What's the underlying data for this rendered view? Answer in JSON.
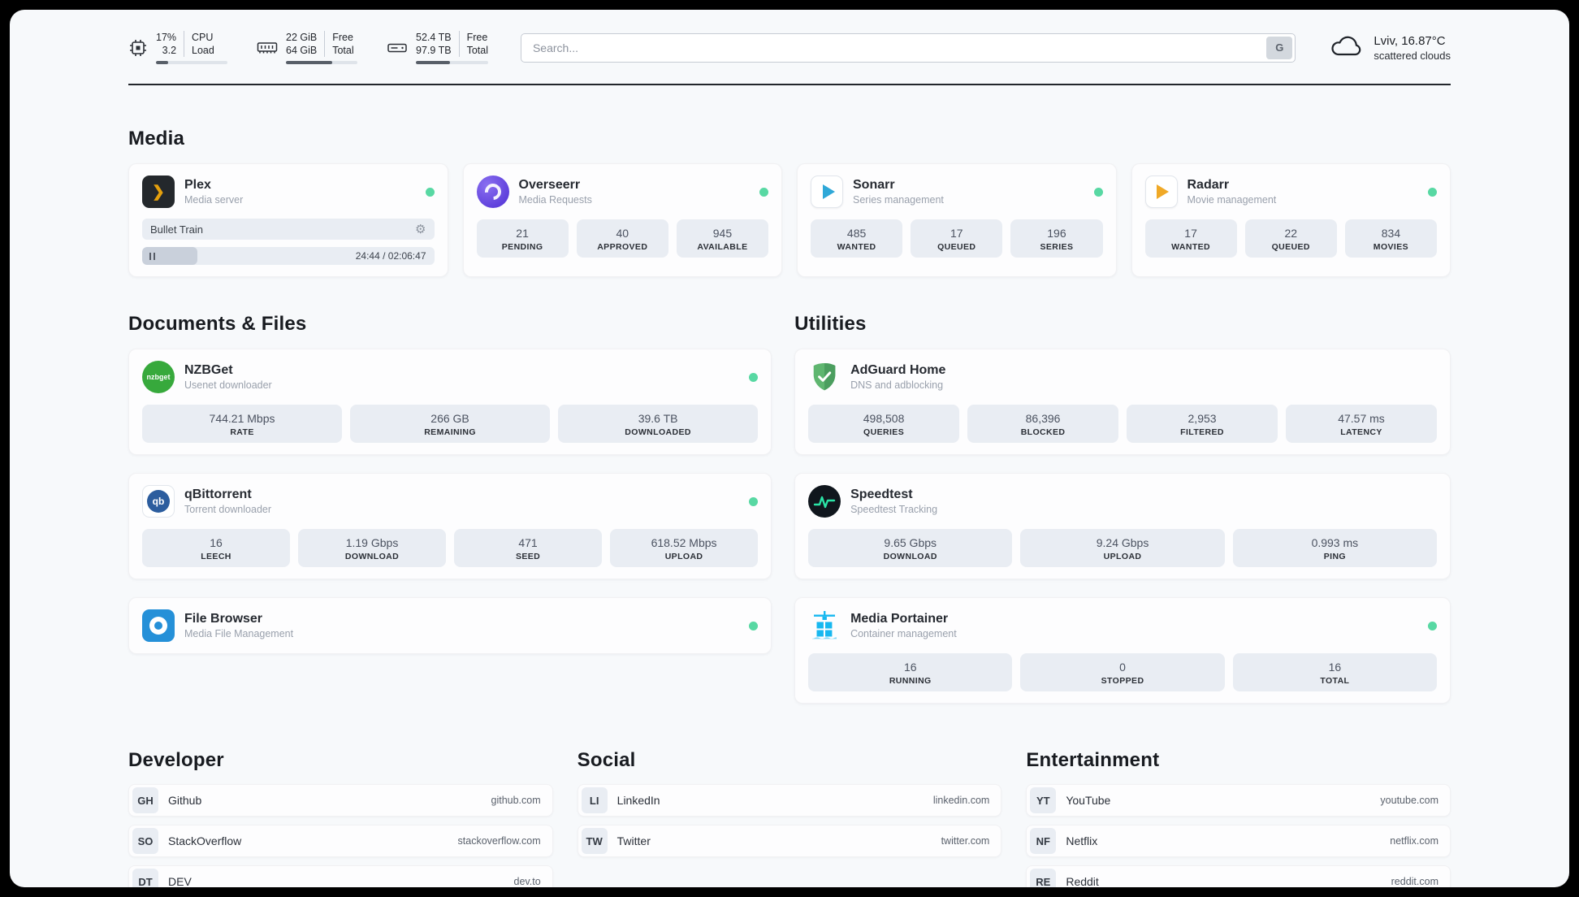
{
  "header": {
    "metrics": [
      {
        "icon": "cpu-icon",
        "rows": [
          {
            "value": "17%",
            "label": "CPU"
          },
          {
            "value": "3.2",
            "label": "Load"
          }
        ],
        "progress": 17
      },
      {
        "icon": "ram-icon",
        "rows": [
          {
            "value": "22 GiB",
            "label": "Free"
          },
          {
            "value": "64 GiB",
            "label": "Total"
          }
        ],
        "progress": 65
      },
      {
        "icon": "disk-icon",
        "rows": [
          {
            "value": "52.4 TB",
            "label": "Free"
          },
          {
            "value": "97.9 TB",
            "label": "Total"
          }
        ],
        "progress": 47
      }
    ],
    "search": {
      "placeholder": "Search...",
      "engine_button": "G"
    },
    "weather": {
      "location": "Lviv, 16.87°C",
      "condition": "scattered clouds"
    }
  },
  "sections": {
    "media": {
      "title": "Media",
      "apps": [
        {
          "name": "Plex",
          "subtitle": "Media server",
          "player": {
            "title": "Bullet Train",
            "time": "24:44 / 02:06:47",
            "progress": 19
          }
        },
        {
          "name": "Overseerr",
          "subtitle": "Media Requests",
          "stats": [
            {
              "value": "21",
              "label": "PENDING"
            },
            {
              "value": "40",
              "label": "APPROVED"
            },
            {
              "value": "945",
              "label": "AVAILABLE"
            }
          ]
        },
        {
          "name": "Sonarr",
          "subtitle": "Series management",
          "stats": [
            {
              "value": "485",
              "label": "WANTED"
            },
            {
              "value": "17",
              "label": "QUEUED"
            },
            {
              "value": "196",
              "label": "SERIES"
            }
          ]
        },
        {
          "name": "Radarr",
          "subtitle": "Movie management",
          "stats": [
            {
              "value": "17",
              "label": "WANTED"
            },
            {
              "value": "22",
              "label": "QUEUED"
            },
            {
              "value": "834",
              "label": "MOVIES"
            }
          ]
        }
      ]
    },
    "documents": {
      "title": "Documents & Files",
      "apps": [
        {
          "name": "NZBGet",
          "subtitle": "Usenet downloader",
          "icon_text": "nzbget",
          "stats": [
            {
              "value": "744.21 Mbps",
              "label": "RATE"
            },
            {
              "value": "266 GB",
              "label": "REMAINING"
            },
            {
              "value": "39.6 TB",
              "label": "DOWNLOADED"
            }
          ]
        },
        {
          "name": "qBittorrent",
          "subtitle": "Torrent downloader",
          "icon_text": "qb",
          "stats": [
            {
              "value": "16",
              "label": "LEECH"
            },
            {
              "value": "1.19 Gbps",
              "label": "DOWNLOAD"
            },
            {
              "value": "471",
              "label": "SEED"
            },
            {
              "value": "618.52 Mbps",
              "label": "UPLOAD"
            }
          ]
        },
        {
          "name": "File Browser",
          "subtitle": "Media File Management"
        }
      ]
    },
    "utilities": {
      "title": "Utilities",
      "apps": [
        {
          "name": "AdGuard Home",
          "subtitle": "DNS and adblocking",
          "stats": [
            {
              "value": "498,508",
              "label": "QUERIES"
            },
            {
              "value": "86,396",
              "label": "BLOCKED"
            },
            {
              "value": "2,953",
              "label": "FILTERED"
            },
            {
              "value": "47.57 ms",
              "label": "LATENCY"
            }
          ]
        },
        {
          "name": "Speedtest",
          "subtitle": "Speedtest Tracking",
          "stats": [
            {
              "value": "9.65 Gbps",
              "label": "DOWNLOAD"
            },
            {
              "value": "9.24 Gbps",
              "label": "UPLOAD"
            },
            {
              "value": "0.993 ms",
              "label": "PING"
            }
          ]
        },
        {
          "name": "Media Portainer",
          "subtitle": "Container management",
          "stats": [
            {
              "value": "16",
              "label": "RUNNING"
            },
            {
              "value": "0",
              "label": "STOPPED"
            },
            {
              "value": "16",
              "label": "TOTAL"
            }
          ]
        }
      ]
    },
    "bookmarks": [
      {
        "title": "Developer",
        "items": [
          {
            "abbr": "GH",
            "name": "Github",
            "domain": "github.com"
          },
          {
            "abbr": "SO",
            "name": "StackOverflow",
            "domain": "stackoverflow.com"
          },
          {
            "abbr": "DT",
            "name": "DEV",
            "domain": "dev.to"
          }
        ]
      },
      {
        "title": "Social",
        "items": [
          {
            "abbr": "LI",
            "name": "LinkedIn",
            "domain": "linkedin.com"
          },
          {
            "abbr": "TW",
            "name": "Twitter",
            "domain": "twitter.com"
          }
        ]
      },
      {
        "title": "Entertainment",
        "items": [
          {
            "abbr": "YT",
            "name": "YouTube",
            "domain": "youtube.com"
          },
          {
            "abbr": "NF",
            "name": "Netflix",
            "domain": "netflix.com"
          },
          {
            "abbr": "RE",
            "name": "Reddit",
            "domain": "reddit.com"
          }
        ]
      }
    ]
  }
}
